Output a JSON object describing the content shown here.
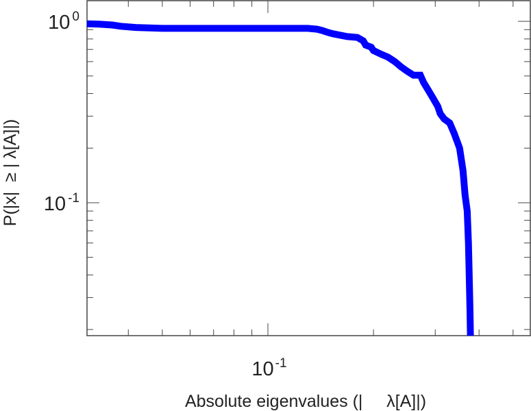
{
  "chart_data": {
    "type": "line",
    "title": "",
    "xlabel": "Absolute eigenvalues (|     λ[A]|)",
    "ylabel": "P(|x|  ≥ | λ[A]|)",
    "x_scale": "log",
    "y_scale": "log",
    "xlim": [
      0.0305,
      0.56
    ],
    "ylim": [
      0.0185,
      1.3
    ],
    "x_ticks": [
      {
        "base": "10",
        "exp": "-1",
        "value": 0.1
      }
    ],
    "y_ticks": [
      {
        "base": "10",
        "exp": "0",
        "value": 1
      },
      {
        "base": "10",
        "exp": "-1",
        "value": 0.1
      }
    ],
    "grid": false,
    "legend": "none",
    "color": "#0000ff",
    "series": [
      {
        "x": [
          0.0305,
          0.033,
          0.036,
          0.038,
          0.042,
          0.05,
          0.07,
          0.1,
          0.13,
          0.138,
          0.143,
          0.148,
          0.153,
          0.16,
          0.168,
          0.18,
          0.187,
          0.19,
          0.197,
          0.2,
          0.21,
          0.22,
          0.23,
          0.24,
          0.25,
          0.26,
          0.272,
          0.278,
          0.286,
          0.295,
          0.305,
          0.31,
          0.318,
          0.33,
          0.34,
          0.352,
          0.36,
          0.365,
          0.37,
          0.373,
          0.375,
          0.377,
          0.378
        ],
        "y": [
          0.97,
          0.965,
          0.955,
          0.94,
          0.925,
          0.915,
          0.915,
          0.915,
          0.915,
          0.905,
          0.89,
          0.87,
          0.855,
          0.84,
          0.825,
          0.815,
          0.78,
          0.74,
          0.72,
          0.69,
          0.66,
          0.635,
          0.6,
          0.56,
          0.53,
          0.505,
          0.505,
          0.46,
          0.42,
          0.38,
          0.34,
          0.31,
          0.29,
          0.275,
          0.24,
          0.2,
          0.15,
          0.11,
          0.09,
          0.06,
          0.04,
          0.025,
          0.0185
        ]
      }
    ]
  }
}
